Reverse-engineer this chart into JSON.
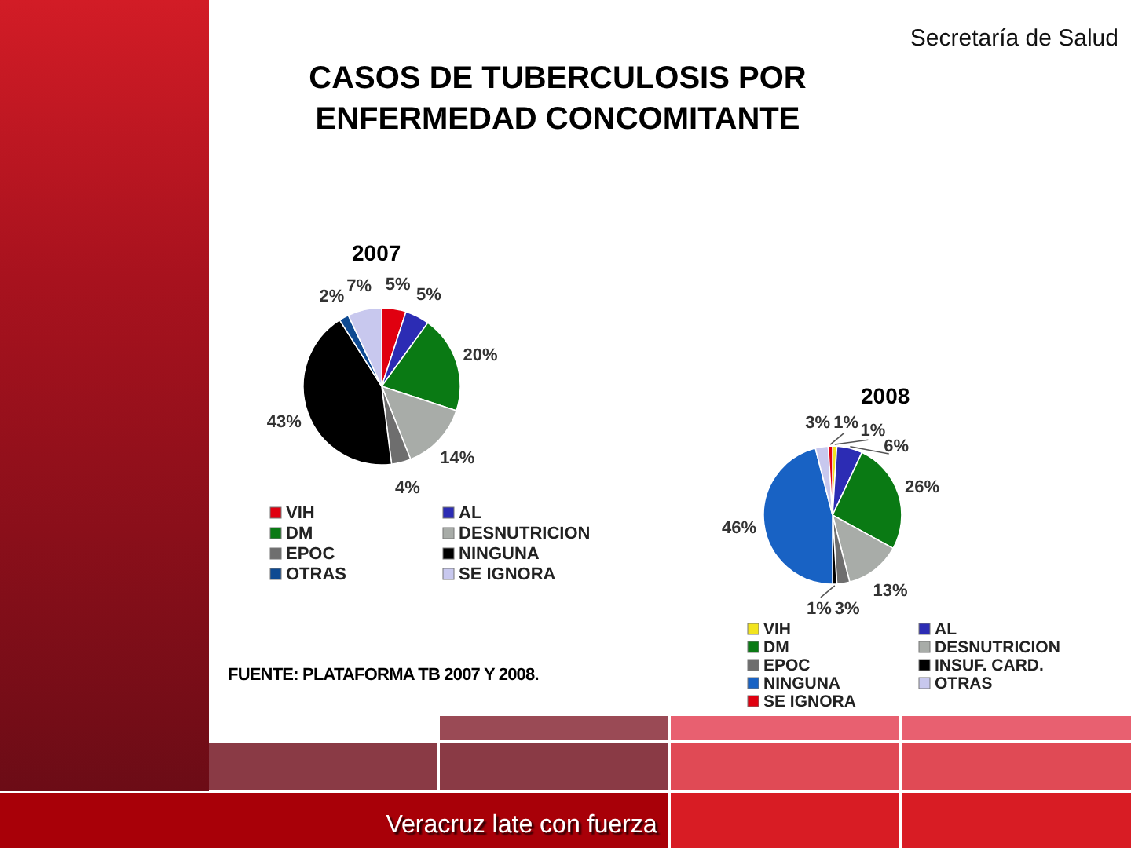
{
  "chart_data": [
    {
      "type": "pie",
      "title": "CASOS DE TUBERCULOSIS POR ENFERMEDAD CONCOMITANTE",
      "subtitle": "2007",
      "categories": [
        "VIH",
        "AL",
        "DM",
        "DESNUTRICION",
        "EPOC",
        "NINGUNA",
        "OTRAS",
        "SE IGNORA"
      ],
      "values": [
        5,
        5,
        20,
        14,
        4,
        43,
        2,
        7
      ],
      "value_labels": [
        "5%",
        "5%",
        "20%",
        "14%",
        "4%",
        "43%",
        "2%",
        "7%"
      ],
      "colors": [
        "#e00010",
        "#2c2cb4",
        "#0a7a14",
        "#a8aca8",
        "#6e6e6e",
        "#000000",
        "#0e4a92",
        "#c8c8ee"
      ],
      "legend": "bottom",
      "annotations": [
        "Secretaría de Salud",
        "FUENTE: PLATAFORMA TB 2007 Y 2008.",
        "Veracruz late con fuerza"
      ]
    },
    {
      "type": "pie",
      "title": "2008",
      "categories": [
        "VIH",
        "AL",
        "DM",
        "DESNUTRICION",
        "EPOC",
        "INSUF. CARD.",
        "NINGUNA",
        "OTRAS",
        "SE IGNORA"
      ],
      "values": [
        1,
        6,
        26,
        13,
        3,
        1,
        46,
        3,
        1
      ],
      "value_labels": [
        "1%",
        "6%",
        "26%",
        "13%",
        "3%",
        "1%",
        "46%",
        "3%",
        "1%"
      ],
      "colors": [
        "#f2e41e",
        "#2c2cb4",
        "#0a7a14",
        "#a8aca8",
        "#6e6e6e",
        "#000000",
        "#1862c4",
        "#c8c8ee",
        "#e00010"
      ],
      "legend": "bottom"
    }
  ]
}
